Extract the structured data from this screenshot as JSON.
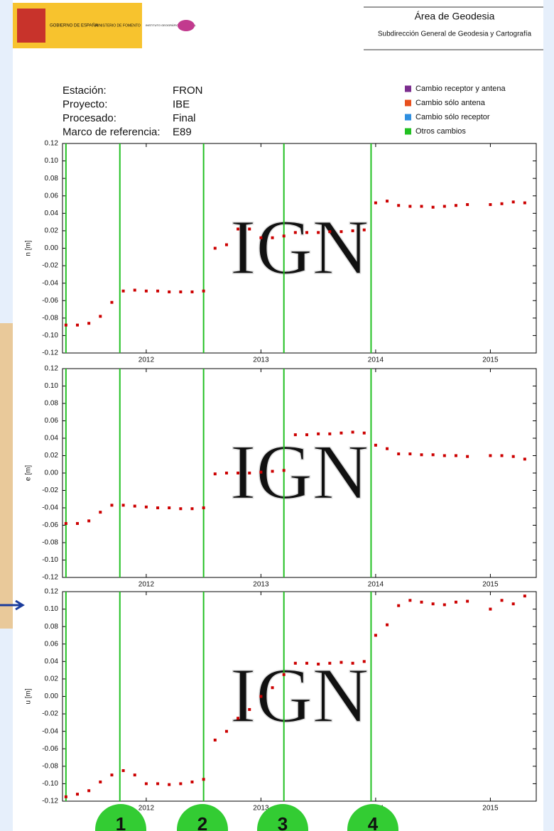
{
  "header": {
    "logos": [
      "GOBIERNO DE ESPAÑA",
      "MINISTERIO DE FOMENTO",
      "INSTITUTO GEOGRÁFICO NACIONAL"
    ],
    "title": "Área de Geodesia",
    "subtitle": "Subdirección General de Geodesia y Cartografía"
  },
  "info": [
    {
      "label": "Estación:",
      "value": "FRON"
    },
    {
      "label": "Proyecto:",
      "value": "IBE"
    },
    {
      "label": "Procesado:",
      "value": "Final"
    },
    {
      "label": "Marco de referencia:",
      "value": "E89"
    }
  ],
  "legend": [
    {
      "name": "Cambio receptor y antena",
      "color": "#7b2d8e"
    },
    {
      "name": "Cambio sólo antena",
      "color": "#e8501e"
    },
    {
      "name": "Cambio sólo receptor",
      "color": "#2f8fe0"
    },
    {
      "name": "Otros cambios",
      "color": "#22c022"
    }
  ],
  "watermark": "IGN",
  "markers": [
    "1",
    "2",
    "3",
    "4"
  ],
  "chart_data": [
    {
      "type": "scatter",
      "ylabel": "n [m]",
      "color": "#cc0000",
      "vlines": [
        2011.3,
        2011.77,
        2012.5,
        2013.2,
        2013.96
      ],
      "vline_color": "#22c022",
      "xlim": [
        2011.27,
        2015.4
      ],
      "xticks": [
        2012,
        2013,
        2014,
        2015
      ],
      "ylim": [
        -0.12,
        0.12
      ],
      "yticks": [
        -0.12,
        {
          "value": -0.1,
          "label": "-0.10"
        },
        -0.08,
        -0.06,
        -0.04,
        -0.02,
        {
          "value": 0,
          "label": "0.00"
        },
        0.02,
        0.04,
        0.06,
        0.08,
        {
          "value": 0.1,
          "label": "0.10"
        },
        0.12
      ],
      "x": [
        2011.3,
        2011.4,
        2011.5,
        2011.6,
        2011.7,
        2011.8,
        2011.9,
        2012.0,
        2012.1,
        2012.2,
        2012.3,
        2012.4,
        2012.5,
        2012.6,
        2012.7,
        2012.8,
        2012.9,
        2013.0,
        2013.1,
        2013.2,
        2013.3,
        2013.4,
        2013.5,
        2013.6,
        2013.7,
        2013.8,
        2013.9,
        2014.0,
        2014.1,
        2014.2,
        2014.3,
        2014.4,
        2014.5,
        2014.6,
        2014.7,
        2014.8,
        2014.9,
        2015.0,
        2015.1,
        2015.2,
        2015.3
      ],
      "values": [
        -0.088,
        -0.088,
        -0.086,
        -0.078,
        -0.062,
        -0.049,
        -0.048,
        -0.049,
        -0.049,
        -0.05,
        -0.05,
        -0.05,
        -0.049,
        0.0,
        0.004,
        0.022,
        0.022,
        0.012,
        0.012,
        0.014,
        0.018,
        0.018,
        0.018,
        0.019,
        0.019,
        0.02,
        0.021,
        0.052,
        0.054,
        0.049,
        0.048,
        0.048,
        0.047,
        0.048,
        0.049,
        0.05,
        null,
        0.05,
        0.051,
        0.053,
        0.052
      ]
    },
    {
      "type": "scatter",
      "ylabel": "e [m]",
      "color": "#cc0000",
      "vlines": [
        2011.3,
        2011.77,
        2012.5,
        2013.2,
        2013.96
      ],
      "vline_color": "#22c022",
      "xlim": [
        2011.27,
        2015.4
      ],
      "xticks": [
        2012,
        2013,
        2014,
        2015
      ],
      "ylim": [
        -0.12,
        0.12
      ],
      "yticks": [
        -0.12,
        {
          "value": -0.1,
          "label": "-0.10"
        },
        -0.08,
        -0.06,
        -0.04,
        -0.02,
        {
          "value": 0,
          "label": "0.00"
        },
        0.02,
        0.04,
        0.06,
        0.08,
        {
          "value": 0.1,
          "label": "0.10"
        },
        0.12
      ],
      "x": [
        2011.3,
        2011.4,
        2011.5,
        2011.6,
        2011.7,
        2011.8,
        2011.9,
        2012.0,
        2012.1,
        2012.2,
        2012.3,
        2012.4,
        2012.5,
        2012.6,
        2012.7,
        2012.8,
        2012.9,
        2013.0,
        2013.1,
        2013.2,
        2013.3,
        2013.4,
        2013.5,
        2013.6,
        2013.7,
        2013.8,
        2013.9,
        2014.0,
        2014.1,
        2014.2,
        2014.3,
        2014.4,
        2014.5,
        2014.6,
        2014.7,
        2014.8,
        2014.9,
        2015.0,
        2015.1,
        2015.2,
        2015.3
      ],
      "values": [
        -0.058,
        -0.058,
        -0.055,
        -0.045,
        -0.037,
        -0.037,
        -0.038,
        -0.039,
        -0.04,
        -0.04,
        -0.041,
        -0.041,
        -0.04,
        -0.001,
        0.0,
        0.0,
        0.0,
        0.001,
        0.002,
        0.003,
        0.044,
        0.044,
        0.045,
        0.045,
        0.046,
        0.047,
        0.046,
        0.032,
        0.028,
        0.022,
        0.022,
        0.021,
        0.021,
        0.02,
        0.02,
        0.019,
        null,
        0.02,
        0.02,
        0.019,
        0.016
      ]
    },
    {
      "type": "scatter",
      "ylabel": "u [m]",
      "color": "#cc0000",
      "vlines": [
        2011.3,
        2011.77,
        2012.5,
        2013.2,
        2013.96
      ],
      "vline_color": "#22c022",
      "xlim": [
        2011.27,
        2015.4
      ],
      "xticks": [
        2012,
        2013,
        2014,
        2015
      ],
      "ylim": [
        -0.12,
        0.12
      ],
      "yticks": [
        -0.12,
        {
          "value": -0.1,
          "label": "-0.10"
        },
        -0.08,
        -0.06,
        -0.04,
        -0.02,
        {
          "value": 0,
          "label": "0.00"
        },
        0.02,
        0.04,
        0.06,
        0.08,
        {
          "value": 0.1,
          "label": "0.10"
        },
        0.12
      ],
      "x": [
        2011.3,
        2011.4,
        2011.5,
        2011.6,
        2011.7,
        2011.8,
        2011.9,
        2012.0,
        2012.1,
        2012.2,
        2012.3,
        2012.4,
        2012.5,
        2012.6,
        2012.7,
        2012.8,
        2012.9,
        2013.0,
        2013.1,
        2013.2,
        2013.3,
        2013.4,
        2013.5,
        2013.6,
        2013.7,
        2013.8,
        2013.9,
        2014.0,
        2014.1,
        2014.2,
        2014.3,
        2014.4,
        2014.5,
        2014.6,
        2014.7,
        2014.8,
        2014.9,
        2015.0,
        2015.1,
        2015.2,
        2015.3
      ],
      "values": [
        -0.115,
        -0.112,
        -0.108,
        -0.098,
        -0.09,
        -0.085,
        -0.09,
        -0.1,
        -0.1,
        -0.101,
        -0.1,
        -0.098,
        -0.095,
        -0.05,
        -0.04,
        -0.025,
        -0.015,
        0.0,
        0.01,
        0.025,
        0.038,
        0.038,
        0.037,
        0.038,
        0.039,
        0.038,
        0.04,
        0.07,
        0.082,
        0.104,
        0.11,
        0.108,
        0.106,
        0.105,
        0.108,
        0.109,
        null,
        0.1,
        0.11,
        0.106,
        0.115
      ]
    }
  ]
}
